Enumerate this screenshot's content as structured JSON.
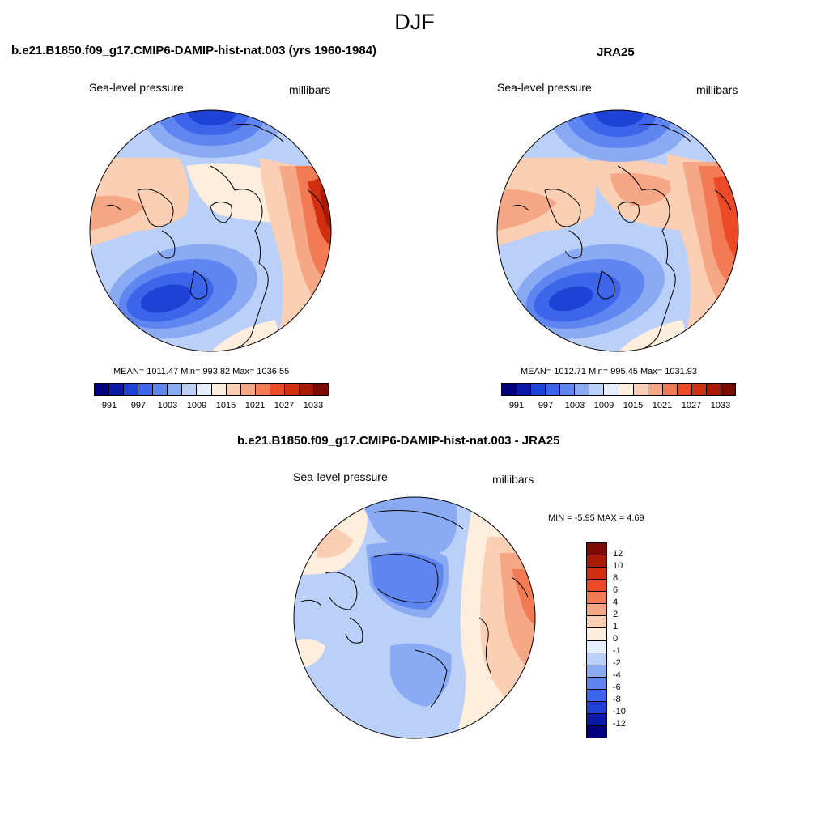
{
  "title": "DJF",
  "panels": [
    {
      "title": "b.e21.B1850.f09_g17.CMIP6-DAMIP-hist-nat.003 (yrs 1960-1984)",
      "left_label": "Sea-level pressure",
      "right_label": "millibars",
      "stats": "MEAN= 1011.47  Min= 993.82  Max= 1036.55"
    },
    {
      "title": "JRA25",
      "left_label": "Sea-level pressure",
      "right_label": "millibars",
      "stats": "MEAN= 1012.71  Min= 995.45  Max= 1031.93"
    },
    {
      "title": "b.e21.B1850.f09_g17.CMIP6-DAMIP-hist-nat.003 - JRA25",
      "left_label": "Sea-level pressure",
      "right_label": "millibars",
      "stats": "MIN =  -5.95 MAX =   4.69"
    }
  ],
  "colorbar_abs": {
    "colors": [
      "#00007f",
      "#0c18a8",
      "#1f42d6",
      "#3d65ea",
      "#5f86f0",
      "#8aaaf4",
      "#bad0f8",
      "#e4eefc",
      "#fdeedd",
      "#fbcfb3",
      "#f6a886",
      "#f27a55",
      "#ec4a26",
      "#d22e10",
      "#a91a05",
      "#7d0a00"
    ],
    "labels": [
      "991",
      "997",
      "1003",
      "1009",
      "1015",
      "1021",
      "1027",
      "1033"
    ]
  },
  "colorbar_diff": {
    "colors": [
      "#7d0a00",
      "#a91a05",
      "#d22e10",
      "#ec4a26",
      "#f27a55",
      "#f6a886",
      "#fbcfb3",
      "#fdeedd",
      "#e4eefc",
      "#bad0f8",
      "#8aaaf4",
      "#5f86f0",
      "#3d65ea",
      "#1f42d6",
      "#0c18a8",
      "#00007f"
    ],
    "labels": [
      "12",
      "10",
      "8",
      "6",
      "4",
      "2",
      "1",
      "0",
      "-1",
      "-2",
      "-4",
      "-6",
      "-8",
      "-10",
      "-12"
    ]
  }
}
